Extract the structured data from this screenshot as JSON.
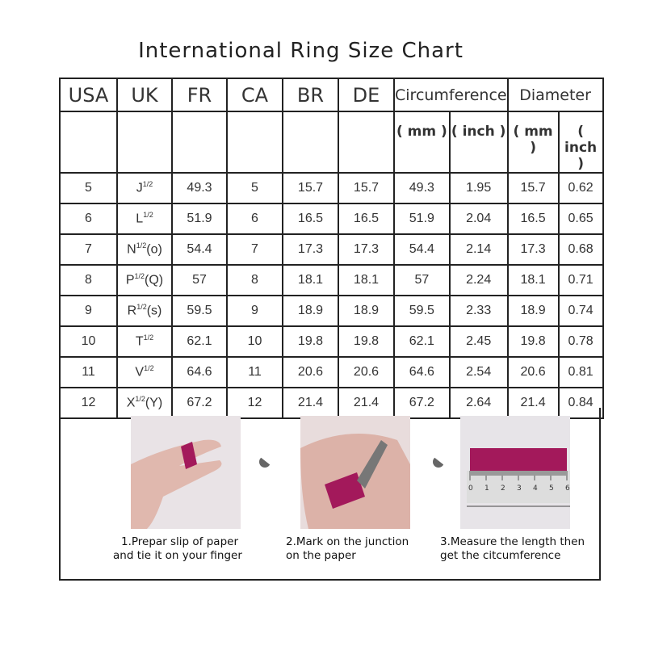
{
  "title": "International Ring Size Chart",
  "headers": [
    "USA",
    "UK",
    "FR",
    "CA",
    "BR",
    "DE",
    "Circumference",
    "Diameter"
  ],
  "subheaders": [
    "( mm )",
    "( inch )",
    "( mm )",
    "( inch )"
  ],
  "rows": [
    [
      "5",
      "J",
      "1/2",
      "",
      "49.3",
      "5",
      "15.7",
      "15.7",
      "49.3",
      "1.95",
      "15.7",
      "0.62"
    ],
    [
      "6",
      "L",
      "1/2",
      "",
      "51.9",
      "6",
      "16.5",
      "16.5",
      "51.9",
      "2.04",
      "16.5",
      "0.65"
    ],
    [
      "7",
      "N",
      "1/2",
      "(o)",
      "54.4",
      "7",
      "17.3",
      "17.3",
      "54.4",
      "2.14",
      "17.3",
      "0.68"
    ],
    [
      "8",
      "P",
      "1/2",
      "(Q)",
      "57",
      "8",
      "18.1",
      "18.1",
      "57",
      "2.24",
      "18.1",
      "0.71"
    ],
    [
      "9",
      "R",
      "1/2",
      "(s)",
      "59.5",
      "9",
      "18.9",
      "18.9",
      "59.5",
      "2.33",
      "18.9",
      "0.74"
    ],
    [
      "10",
      "T",
      "1/2",
      "",
      "62.1",
      "10",
      "19.8",
      "19.8",
      "62.1",
      "2.45",
      "19.8",
      "0.78"
    ],
    [
      "11",
      "V",
      "1/2",
      "",
      "64.6",
      "11",
      "20.6",
      "20.6",
      "64.6",
      "2.54",
      "20.6",
      "0.81"
    ],
    [
      "12",
      "X",
      "1/2",
      "(Y)",
      "67.2",
      "12",
      "21.4",
      "21.4",
      "67.2",
      "2.64",
      "21.4",
      "0.84"
    ]
  ],
  "steps": [
    {
      "line1": "1.Prepar slip of paper",
      "line2": "and tie it on your finger"
    },
    {
      "line1": "2.Mark on the junction",
      "line2": "on the paper"
    },
    {
      "line1": "3.Measure the length then",
      "line2": "get the citcumference"
    }
  ],
  "ruler_labels": [
    "0",
    "1",
    "2",
    "3",
    "4",
    "5",
    "6"
  ],
  "colors": {
    "paper_strip": "#a3195b",
    "photo_bg": "#e9e3e6"
  }
}
